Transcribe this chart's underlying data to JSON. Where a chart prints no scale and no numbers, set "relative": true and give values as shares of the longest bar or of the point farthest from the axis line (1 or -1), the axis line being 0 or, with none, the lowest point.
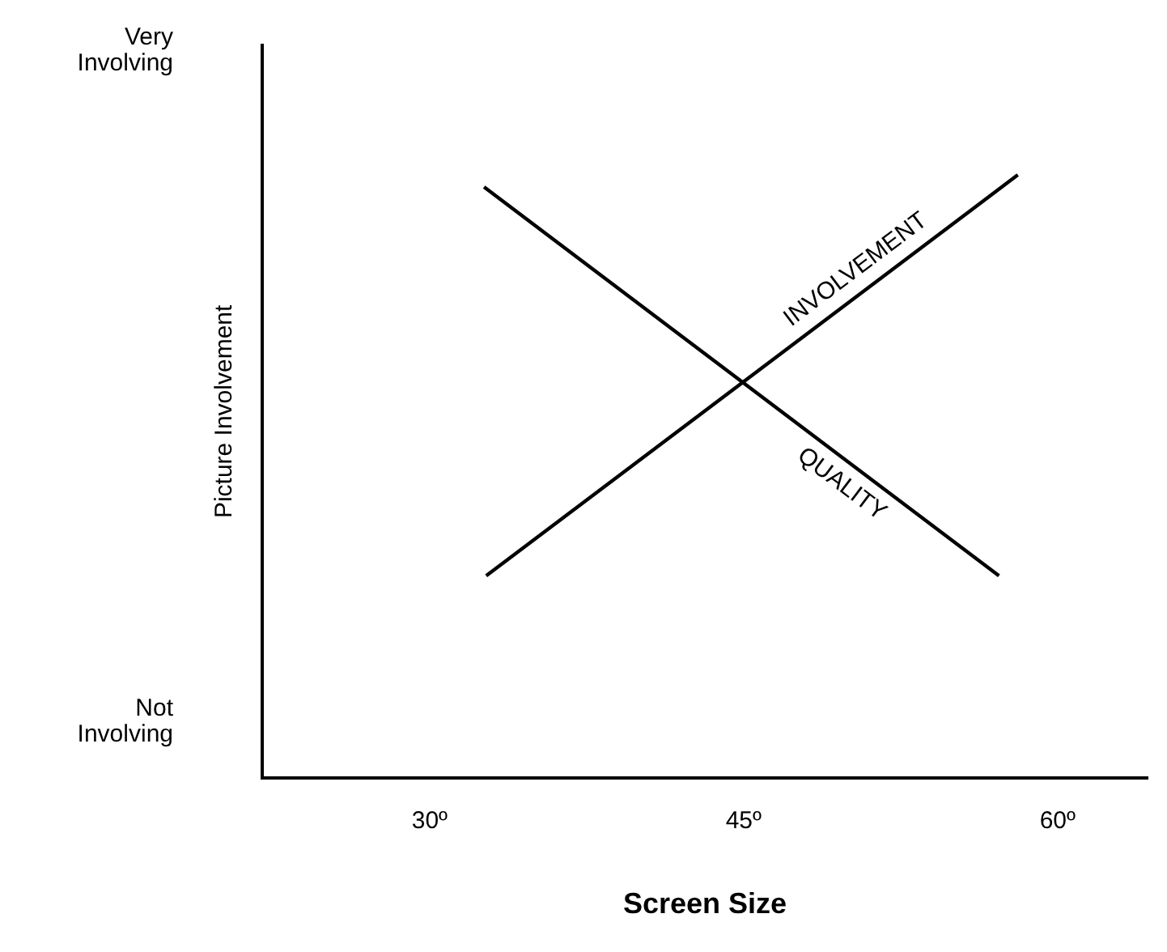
{
  "chart_data": {
    "type": "line",
    "xlabel": "Screen Size",
    "ylabel": "Picture Involvement",
    "relative": true,
    "xlim": [
      22,
      64.3
    ],
    "xticks": [
      {
        "value": 30,
        "label": "30º"
      },
      {
        "value": 45,
        "label": "45º"
      },
      {
        "value": 60,
        "label": "60º"
      }
    ],
    "series": [
      {
        "name": "QUALITY",
        "color": "#000000",
        "x": [
          32.6,
          57.2
        ],
        "values": [
          0.98,
          0.335
        ]
      },
      {
        "name": "INVOLVEMENT",
        "color": "#000000",
        "x": [
          32.7,
          58.1
        ],
        "values": [
          0.335,
          1
        ]
      }
    ],
    "annotations": [
      "Very\nInvolving",
      "Not\nInvolving"
    ],
    "grid": false,
    "legend": false,
    "marker": "none",
    "line_style": "solid"
  }
}
